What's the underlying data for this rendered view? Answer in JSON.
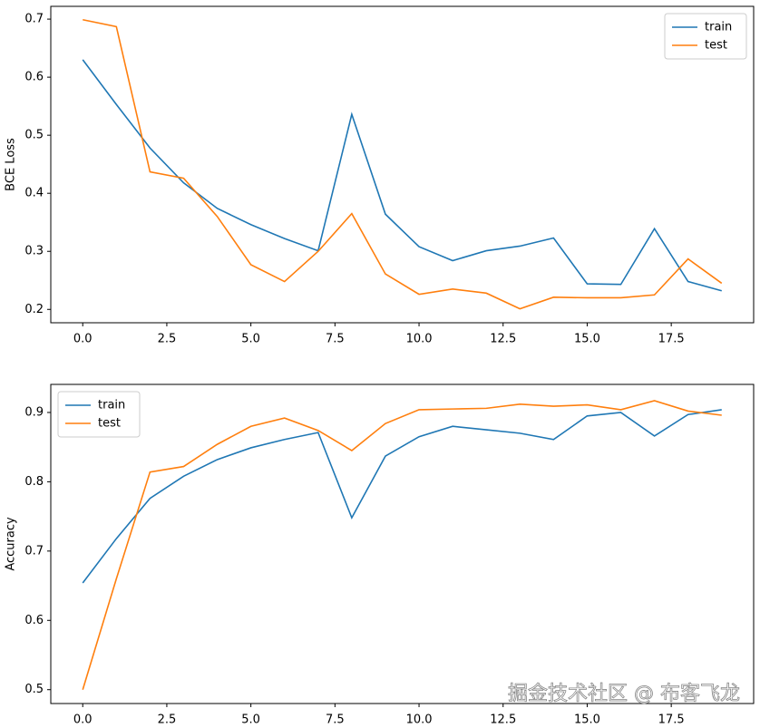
{
  "chart_data": [
    {
      "type": "line",
      "ylabel": "BCE Loss",
      "legend": "upper right",
      "x": [
        0,
        1,
        2,
        3,
        4,
        5,
        6,
        7,
        8,
        9,
        10,
        11,
        12,
        13,
        14,
        15,
        16,
        17,
        18,
        19
      ],
      "series": [
        {
          "name": "train",
          "color": "#1f77b4",
          "values": [
            0.63,
            0.553,
            0.478,
            0.418,
            0.374,
            0.346,
            0.322,
            0.301,
            0.536,
            0.364,
            0.308,
            0.284,
            0.301,
            0.309,
            0.323,
            0.244,
            0.243,
            0.339,
            0.248,
            0.232
          ]
        },
        {
          "name": "test",
          "color": "#ff7f0e",
          "values": [
            0.699,
            0.687,
            0.437,
            0.426,
            0.36,
            0.277,
            0.248,
            0.3,
            0.365,
            0.261,
            0.226,
            0.235,
            0.228,
            0.201,
            0.221,
            0.22,
            0.22,
            0.225,
            0.287,
            0.245
          ]
        }
      ],
      "xlim": [
        -0.95,
        19.95
      ],
      "ylim": [
        0.177,
        0.722
      ],
      "xticks": [
        {
          "value": 0,
          "label": "0.0"
        },
        {
          "value": 2.5,
          "label": "2.5"
        },
        {
          "value": 5,
          "label": "5.0"
        },
        {
          "value": 7.5,
          "label": "7.5"
        },
        {
          "value": 10,
          "label": "10.0"
        },
        {
          "value": 12.5,
          "label": "12.5"
        },
        {
          "value": 15,
          "label": "15.0"
        },
        {
          "value": 17.5,
          "label": "17.5"
        }
      ],
      "yticks": [
        0.2,
        0.3,
        0.4,
        0.5,
        0.6,
        0.7
      ]
    },
    {
      "type": "line",
      "ylabel": "Accuracy",
      "legend": "upper left",
      "x": [
        0,
        1,
        2,
        3,
        4,
        5,
        6,
        7,
        8,
        9,
        10,
        11,
        12,
        13,
        14,
        15,
        16,
        17,
        18,
        19
      ],
      "series": [
        {
          "name": "train",
          "color": "#1f77b4",
          "values": [
            0.654,
            0.718,
            0.776,
            0.808,
            0.832,
            0.849,
            0.861,
            0.871,
            0.748,
            0.837,
            0.865,
            0.88,
            0.875,
            0.87,
            0.861,
            0.895,
            0.9,
            0.866,
            0.897,
            0.904
          ]
        },
        {
          "name": "test",
          "color": "#ff7f0e",
          "values": [
            0.5,
            0.66,
            0.814,
            0.822,
            0.854,
            0.88,
            0.892,
            0.874,
            0.845,
            0.884,
            0.904,
            0.905,
            0.906,
            0.912,
            0.909,
            0.911,
            0.904,
            0.917,
            0.902,
            0.896
          ]
        }
      ],
      "xlim": [
        -0.95,
        19.95
      ],
      "ylim": [
        0.48,
        0.9405
      ],
      "xticks": [
        {
          "value": 0,
          "label": "0.0"
        },
        {
          "value": 2.5,
          "label": "2.5"
        },
        {
          "value": 5,
          "label": "5.0"
        },
        {
          "value": 7.5,
          "label": "7.5"
        },
        {
          "value": 10,
          "label": "10.0"
        },
        {
          "value": 12.5,
          "label": "12.5"
        },
        {
          "value": 15,
          "label": "15.0"
        },
        {
          "value": 17.5,
          "label": "17.5"
        }
      ],
      "yticks": [
        0.5,
        0.6,
        0.7,
        0.8,
        0.9
      ]
    }
  ],
  "watermark": "掘金技术社区 @ 布客飞龙"
}
